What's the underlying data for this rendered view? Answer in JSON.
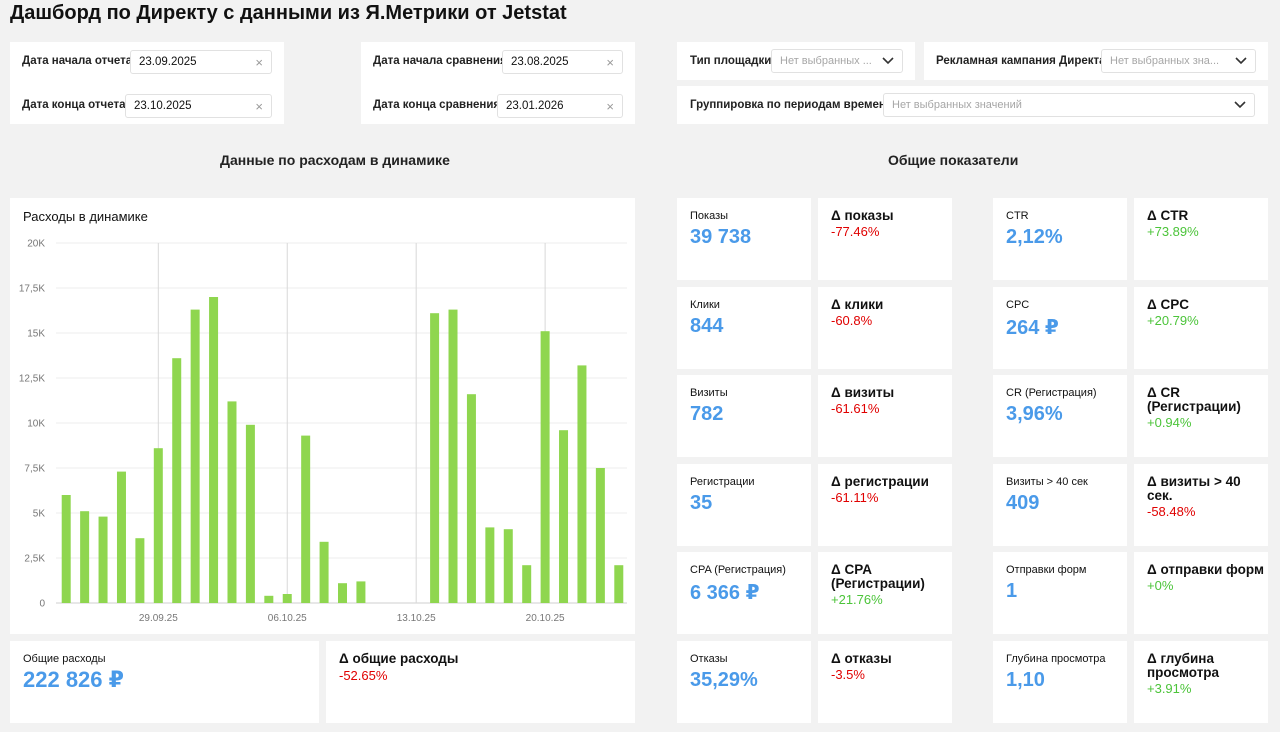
{
  "title": "Дашборд по Директу с данными из Я.Метрики от Jetstat",
  "filters": {
    "start_label": "Дата начала отчета",
    "start_value": "23.09.2025",
    "end_label": "Дата конца отчета",
    "end_value": "23.10.2025",
    "cmp_start_label": "Дата начала сравнения",
    "cmp_start_value": "23.08.2025",
    "cmp_end_label": "Дата конца сравнения",
    "cmp_end_value": "23.01.2026",
    "platform_label": "Тип площадки",
    "platform_placeholder": "Нет выбранных ...",
    "campaign_label": "Рекламная кампания Директа",
    "campaign_placeholder": "Нет выбранных зна...",
    "grouping_label": "Группировка по периодам времени",
    "grouping_placeholder": "Нет выбранных значений",
    "clear_icon": "×"
  },
  "sections": {
    "left": "Данные по расходам в динамике",
    "right": "Общие показатели"
  },
  "chart_data": {
    "type": "bar",
    "title": "Расходы в динамике",
    "ylim": [
      0,
      20000
    ],
    "yticks": [
      {
        "v": 0,
        "label": "0"
      },
      {
        "v": 2500,
        "label": "2,5K"
      },
      {
        "v": 5000,
        "label": "5K"
      },
      {
        "v": 7500,
        "label": "7,5K"
      },
      {
        "v": 10000,
        "label": "10K"
      },
      {
        "v": 12500,
        "label": "12,5K"
      },
      {
        "v": 15000,
        "label": "15K"
      },
      {
        "v": 17500,
        "label": "17,5K"
      },
      {
        "v": 20000,
        "label": "20K"
      }
    ],
    "xticks": [
      {
        "index": 5,
        "label": "29.09.25"
      },
      {
        "index": 12,
        "label": "06.10.25"
      },
      {
        "index": 19,
        "label": "13.10.25"
      },
      {
        "index": 26,
        "label": "20.10.25"
      }
    ],
    "values": [
      6000,
      5100,
      4800,
      7300,
      3600,
      8600,
      13600,
      16300,
      17000,
      11200,
      9900,
      400,
      500,
      9300,
      3400,
      1100,
      1200,
      0,
      0,
      0,
      16100,
      16300,
      11600,
      4200,
      4100,
      2100,
      15100,
      9600,
      13200,
      7500,
      2100
    ],
    "bar_color": "#8fd64f",
    "grid": true
  },
  "kpis": {
    "col1": [
      {
        "label": "Показы",
        "value": "39 738"
      },
      {
        "label": "Клики",
        "value": "844"
      },
      {
        "label": "Визиты",
        "value": "782"
      },
      {
        "label": "Регистрации",
        "value": "35"
      },
      {
        "label": "CPA (Регистрация)",
        "value": "6 366 ₽"
      },
      {
        "label": "Отказы",
        "value": "35,29%"
      }
    ],
    "col2": [
      {
        "label": "Δ показы",
        "value": "-77.46%",
        "sign": "neg"
      },
      {
        "label": "Δ клики",
        "value": "-60.8%",
        "sign": "neg"
      },
      {
        "label": "Δ визиты",
        "value": "-61.61%",
        "sign": "neg"
      },
      {
        "label": "Δ регистрации",
        "value": "-61.11%",
        "sign": "neg"
      },
      {
        "label": "Δ CPA (Регистрации)",
        "value": "+21.76%",
        "sign": "pos"
      },
      {
        "label": "Δ отказы",
        "value": "-3.5%",
        "sign": "neg"
      }
    ],
    "col3": [
      {
        "label": "CTR",
        "value": "2,12%"
      },
      {
        "label": "CPC",
        "value": "264 ₽"
      },
      {
        "label": "CR (Регистрация)",
        "value": "3,96%"
      },
      {
        "label": "Визиты > 40 сек",
        "value": "409"
      },
      {
        "label": "Отправки форм",
        "value": "1"
      },
      {
        "label": "Глубина просмотра",
        "value": "1,10"
      }
    ],
    "col4": [
      {
        "label": "Δ CTR",
        "value": "+73.89%",
        "sign": "pos"
      },
      {
        "label": "Δ CPC",
        "value": "+20.79%",
        "sign": "pos"
      },
      {
        "label": "Δ CR (Регистрации)",
        "value": "+0.94%",
        "sign": "pos"
      },
      {
        "label": "Δ визиты > 40 сек.",
        "value": "-58.48%",
        "sign": "neg"
      },
      {
        "label": "Δ отправки форм",
        "value": "+0%",
        "sign": "pos"
      },
      {
        "label": "Δ глубина просмотра",
        "value": "+3.91%",
        "sign": "pos"
      }
    ]
  },
  "totals": {
    "spend_label": "Общие расходы",
    "spend_value": "222 826 ₽",
    "delta_label": "Δ общие расходы",
    "delta_value": "-52.65%"
  },
  "colors": {
    "accent": "#4a9ae9",
    "negative": "#e00000",
    "positive": "#4cc43a"
  }
}
